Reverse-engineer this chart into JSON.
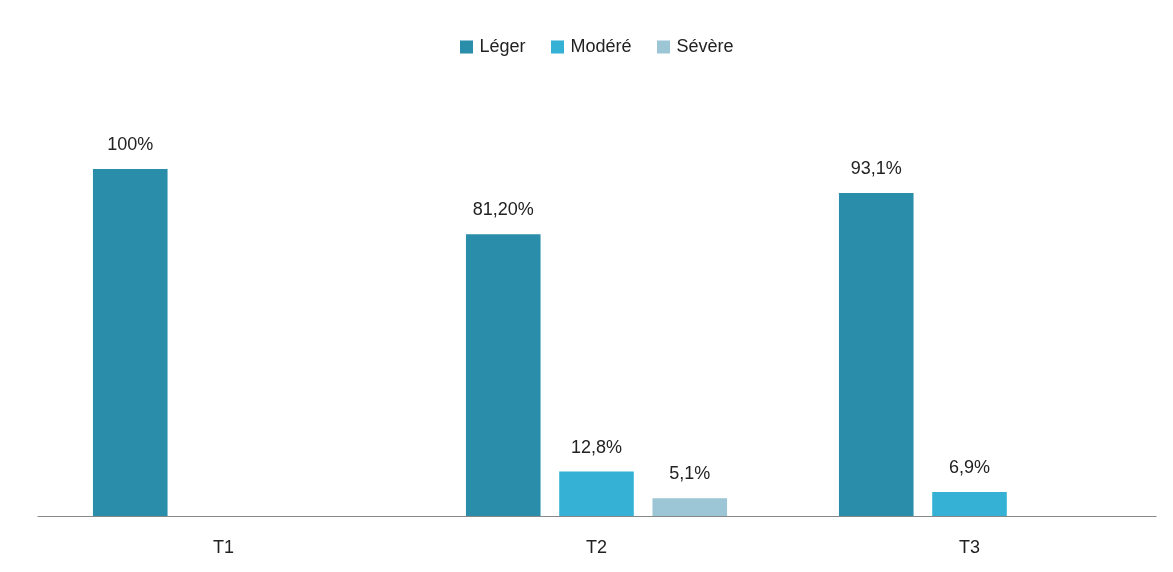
{
  "chart_data": {
    "type": "bar",
    "categories": [
      "T1",
      "T2",
      "T3"
    ],
    "series": [
      {
        "name": "Léger",
        "color": "#2a8eaa",
        "values": [
          100,
          81.2,
          93.1
        ],
        "value_labels": [
          "100%",
          "81,20%",
          "93,1%"
        ]
      },
      {
        "name": "Modéré",
        "color": "#35b1d5",
        "values": [
          null,
          12.8,
          6.9
        ],
        "value_labels": [
          null,
          "12,8%",
          "6,9%"
        ]
      },
      {
        "name": "Sévère",
        "color": "#9cc6d6",
        "values": [
          null,
          5.1,
          null
        ],
        "value_labels": [
          null,
          "5,1%",
          null
        ]
      }
    ],
    "legend": "top",
    "grid": false,
    "tick_labels": "x"
  }
}
